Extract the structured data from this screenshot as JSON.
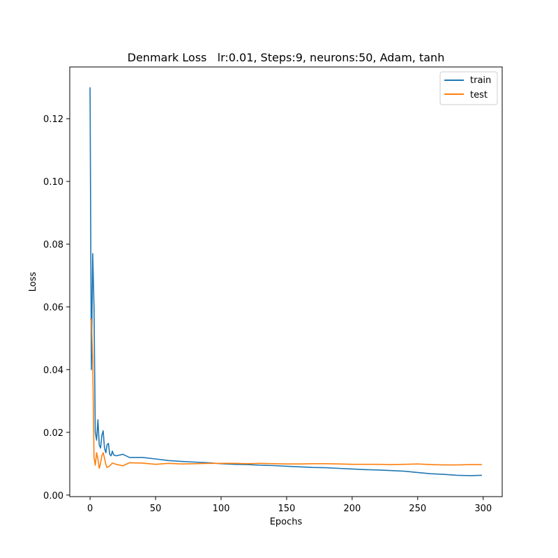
{
  "chart_data": {
    "type": "line",
    "title": "Denmark Loss   lr:0.01, Steps:9, neurons:50, Adam, tanh",
    "xlabel": "Epochs",
    "ylabel": "Loss",
    "xlim": [
      -15.5,
      314.5
    ],
    "ylim": [
      -0.0005,
      0.1365
    ],
    "xticks": [
      0,
      50,
      100,
      150,
      200,
      250,
      300
    ],
    "xtick_labels": [
      "0",
      "50",
      "100",
      "150",
      "200",
      "250",
      "300"
    ],
    "yticks": [
      0.0,
      0.02,
      0.04,
      0.06,
      0.08,
      0.1,
      0.12
    ],
    "ytick_labels": [
      "0.00",
      "0.02",
      "0.04",
      "0.06",
      "0.08",
      "0.10",
      "0.12"
    ],
    "grid": false,
    "legend_position": "top-right",
    "series": [
      {
        "name": "train",
        "color": "#1f77b4",
        "x": [
          0,
          1,
          2,
          3,
          4,
          5,
          6,
          7,
          8,
          9,
          10,
          11,
          12,
          13,
          14,
          15,
          16,
          17,
          18,
          20,
          25,
          30,
          40,
          50,
          60,
          70,
          80,
          90,
          100,
          110,
          120,
          130,
          140,
          150,
          160,
          170,
          180,
          190,
          200,
          210,
          220,
          230,
          240,
          250,
          260,
          270,
          280,
          290,
          299
        ],
        "y": [
          0.13,
          0.04,
          0.077,
          0.06,
          0.02,
          0.0175,
          0.024,
          0.016,
          0.015,
          0.019,
          0.0205,
          0.015,
          0.0135,
          0.016,
          0.0165,
          0.013,
          0.0125,
          0.014,
          0.0128,
          0.0125,
          0.013,
          0.012,
          0.012,
          0.0115,
          0.011,
          0.0107,
          0.0105,
          0.0103,
          0.01,
          0.0098,
          0.0097,
          0.0095,
          0.0094,
          0.0092,
          0.009,
          0.0088,
          0.0087,
          0.0085,
          0.0083,
          0.0081,
          0.008,
          0.0078,
          0.0076,
          0.0072,
          0.0068,
          0.0066,
          0.0063,
          0.0062,
          0.0063
        ]
      },
      {
        "name": "test",
        "color": "#ff7f0e",
        "x": [
          0,
          1,
          2,
          3,
          4,
          5,
          6,
          7,
          8,
          9,
          10,
          11,
          12,
          13,
          14,
          15,
          17,
          20,
          25,
          30,
          40,
          50,
          60,
          70,
          80,
          90,
          100,
          110,
          120,
          130,
          140,
          150,
          160,
          170,
          180,
          190,
          200,
          210,
          220,
          230,
          240,
          250,
          260,
          270,
          280,
          290,
          299
        ],
        "y": [
          0.056,
          0.056,
          0.043,
          0.012,
          0.0095,
          0.0135,
          0.0115,
          0.0085,
          0.0102,
          0.0125,
          0.0135,
          0.0118,
          0.0098,
          0.0088,
          0.009,
          0.0093,
          0.0102,
          0.0098,
          0.0093,
          0.0103,
          0.0102,
          0.0098,
          0.0101,
          0.0099,
          0.01,
          0.0101,
          0.0101,
          0.0101,
          0.01,
          0.0101,
          0.01,
          0.0099,
          0.0099,
          0.01,
          0.01,
          0.0099,
          0.0098,
          0.0098,
          0.0098,
          0.0097,
          0.0098,
          0.0099,
          0.0097,
          0.0096,
          0.0096,
          0.0097,
          0.0097
        ]
      }
    ]
  }
}
